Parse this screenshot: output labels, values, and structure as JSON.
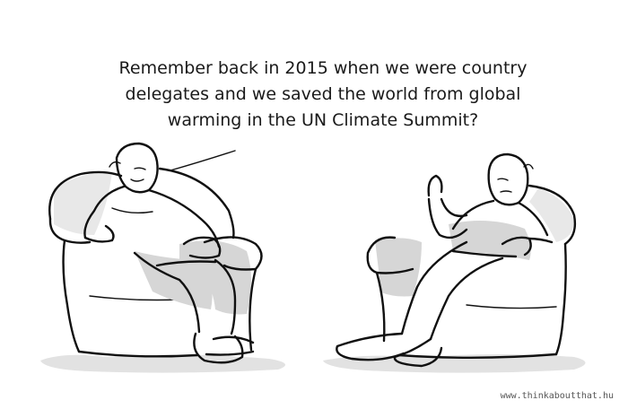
{
  "speech": {
    "lines": [
      "Remember back in 2015 when we were country",
      "delegates and we saved the world from global",
      "warming in the UN Climate Summit?"
    ]
  },
  "credit": "www.thinkaboutthat.hu",
  "colors": {
    "ink": "#111111",
    "shade": "#d6d6d6",
    "background": "#ffffff"
  }
}
